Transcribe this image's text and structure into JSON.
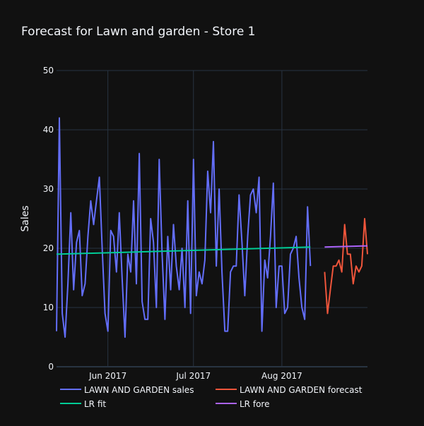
{
  "chart_data": {
    "type": "line",
    "title": "Forecast for Lawn and garden - Store 1",
    "xlabel": "",
    "ylabel": "Sales",
    "ylim": [
      0,
      50
    ],
    "yticks": [
      0,
      10,
      20,
      30,
      40,
      50
    ],
    "xlim": [
      "2017-05-14",
      "2017-08-31"
    ],
    "xticks": [
      {
        "label": "Jun 2017",
        "date": "2017-06-01"
      },
      {
        "label": "Jul 2017",
        "date": "2017-07-01"
      },
      {
        "label": "Aug 2017",
        "date": "2017-08-01"
      }
    ],
    "grid": true,
    "legend_position": "bottom",
    "background_color": "#111111",
    "grid_color": "#283442",
    "series": [
      {
        "name": "LAWN AND GARDEN sales",
        "color": "#636efa",
        "start_date": "2017-05-14",
        "values": [
          6,
          42,
          9,
          5,
          14,
          26,
          13,
          21,
          23,
          12,
          14,
          22,
          28,
          24,
          28,
          32,
          20,
          9,
          6,
          23,
          22,
          16,
          26,
          15,
          5,
          19,
          16,
          28,
          14,
          36,
          11,
          8,
          8,
          25,
          21,
          10,
          35,
          19,
          8,
          22,
          13,
          24,
          17,
          13,
          20,
          10,
          28,
          9,
          35,
          12,
          16,
          14,
          18,
          33,
          26,
          38,
          17,
          30,
          16,
          6,
          6,
          16,
          17,
          17,
          29,
          21,
          12,
          22,
          29,
          30,
          26,
          32,
          6,
          18,
          15,
          22,
          31,
          10,
          17,
          17,
          9,
          10,
          19,
          20,
          22,
          15,
          10,
          8,
          27,
          17
        ]
      },
      {
        "name": "LAWN AND GARDEN forecast",
        "color": "#ef553b",
        "start_date": "2017-08-16",
        "values": [
          16,
          9,
          13,
          17,
          17,
          18,
          16,
          24,
          19,
          19,
          14,
          17,
          16,
          17,
          25,
          19
        ]
      },
      {
        "name": "LR fit",
        "color": "#00cc96",
        "start_date": "2017-05-14",
        "values": [
          19.0,
          20.2
        ],
        "end_date": "2017-08-11"
      },
      {
        "name": "LR fore",
        "color": "#ab63fa",
        "start_date": "2017-08-16",
        "values": [
          20.2,
          20.4
        ],
        "end_date": "2017-08-31"
      }
    ]
  }
}
